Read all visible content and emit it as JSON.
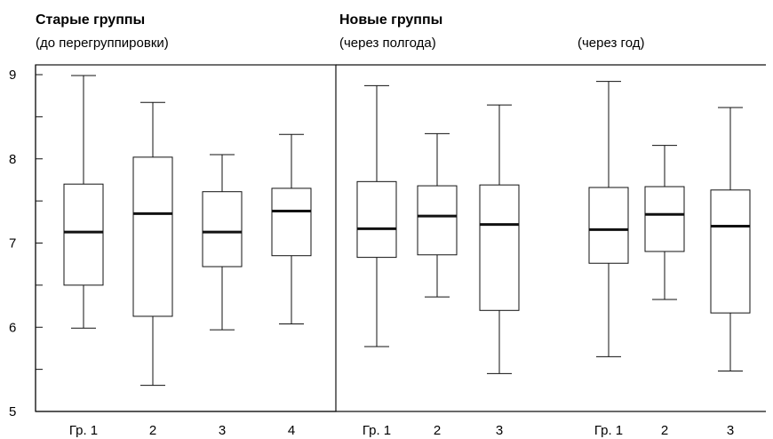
{
  "headers": {
    "old_title": "Старые группы",
    "old_subtitle": "(до перегруппировки)",
    "new_title": "Новые группы",
    "new_half_year": "(через полгода)",
    "new_year": "(через год)"
  },
  "chart_data": {
    "type": "boxplot",
    "ylim": [
      5,
      9
    ],
    "yticks": [
      "5",
      "6",
      "7",
      "8",
      "9"
    ],
    "grid": false,
    "panels": [
      {
        "name": "old",
        "categories": [
          "Гр. 1",
          "2",
          "3",
          "4"
        ],
        "boxes": [
          {
            "min": 5.99,
            "q1": 6.5,
            "median": 7.13,
            "q3": 7.7,
            "max": 8.99
          },
          {
            "min": 5.31,
            "q1": 6.13,
            "median": 7.35,
            "q3": 8.02,
            "max": 8.67
          },
          {
            "min": 5.97,
            "q1": 6.72,
            "median": 7.13,
            "q3": 7.61,
            "max": 8.05
          },
          {
            "min": 6.04,
            "q1": 6.85,
            "median": 7.38,
            "q3": 7.65,
            "max": 8.29
          }
        ]
      },
      {
        "name": "half-year",
        "categories": [
          "Гр. 1",
          "2",
          "3"
        ],
        "boxes": [
          {
            "min": 5.77,
            "q1": 6.83,
            "median": 7.17,
            "q3": 7.73,
            "max": 8.87
          },
          {
            "min": 6.36,
            "q1": 6.86,
            "median": 7.32,
            "q3": 7.68,
            "max": 8.3
          },
          {
            "min": 5.45,
            "q1": 6.2,
            "median": 7.22,
            "q3": 7.69,
            "max": 8.64
          }
        ]
      },
      {
        "name": "year",
        "categories": [
          "Гр. 1",
          "2",
          "3"
        ],
        "boxes": [
          {
            "min": 5.65,
            "q1": 6.76,
            "median": 7.16,
            "q3": 7.66,
            "max": 8.92
          },
          {
            "min": 6.33,
            "q1": 6.9,
            "median": 7.34,
            "q3": 7.67,
            "max": 8.16
          },
          {
            "min": 5.48,
            "q1": 6.17,
            "median": 7.2,
            "q3": 7.63,
            "max": 8.61
          }
        ]
      }
    ]
  }
}
